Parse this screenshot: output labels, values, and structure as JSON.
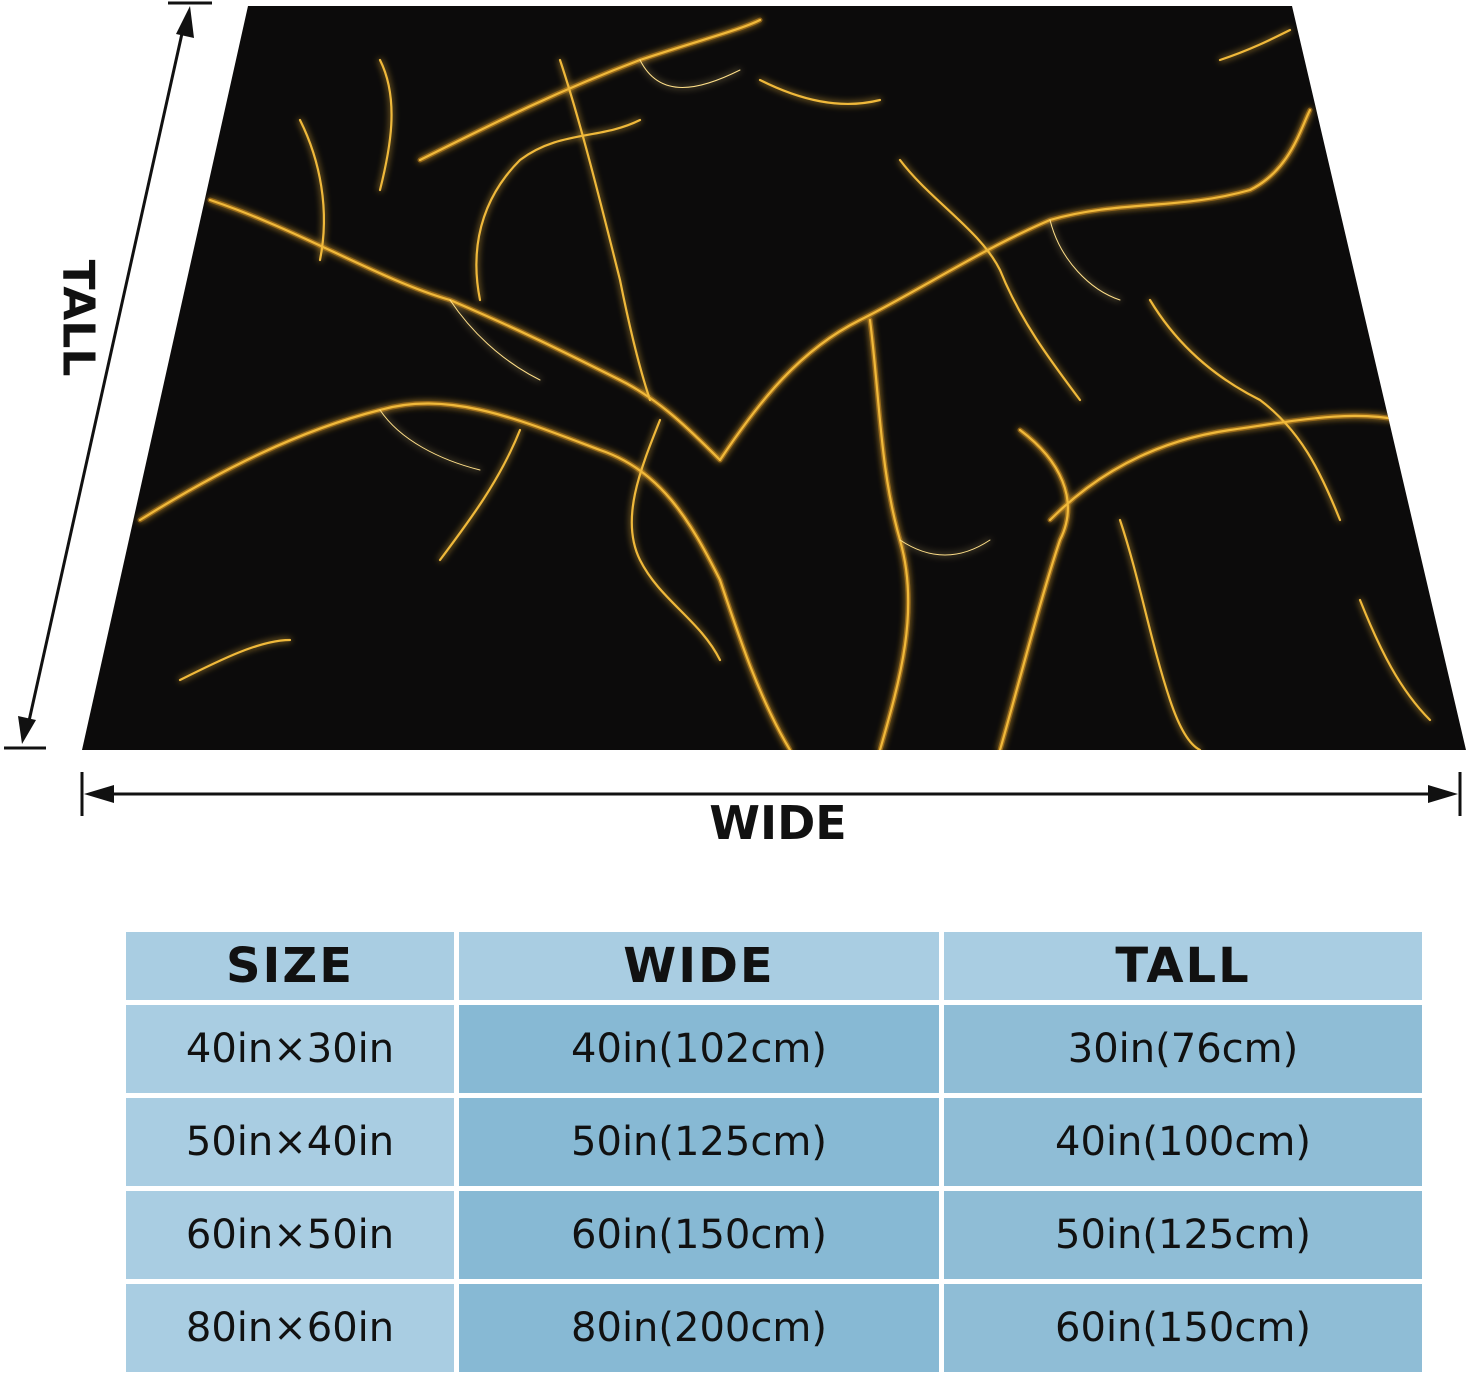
{
  "figure": {
    "wide_label": "WIDE",
    "tall_label": "TALL",
    "blanket_colors": {
      "base": "#0c0b0b",
      "vein": "#e3a523",
      "vein_glow": "#ffd66a"
    }
  },
  "table": {
    "headers": [
      "SIZE",
      "WIDE",
      "TALL"
    ],
    "header_colors": [
      "#a9cde2",
      "#a9cde2",
      "#a9cde2"
    ],
    "column_colors": [
      "#a9cde2",
      "#87b9d4",
      "#8fbdd6"
    ],
    "rows": [
      [
        "40in×30in",
        "40in(102cm)",
        "30in(76cm)"
      ],
      [
        "50in×40in",
        "50in(125cm)",
        "40in(100cm)"
      ],
      [
        "60in×50in",
        "60in(150cm)",
        "50in(125cm)"
      ],
      [
        "80in×60in",
        "80in(200cm)",
        "60in(150cm)"
      ]
    ]
  }
}
